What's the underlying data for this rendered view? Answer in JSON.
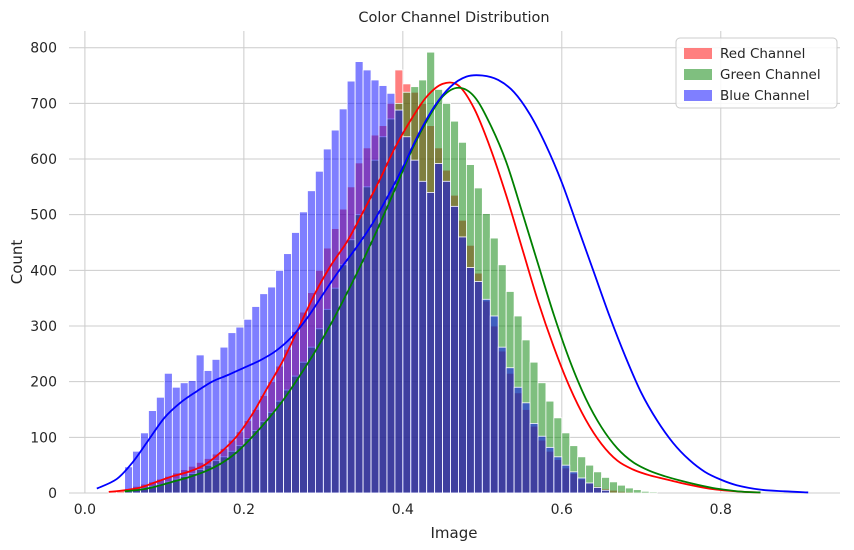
{
  "chart_data": {
    "type": "bar",
    "title": "Color Channel Distribution",
    "xlabel": "Image",
    "ylabel": "Count",
    "xlim": [
      -0.02,
      0.95
    ],
    "ylim": [
      0,
      830
    ],
    "xticks": [
      0.0,
      0.2,
      0.4,
      0.6,
      0.8
    ],
    "xtick_labels": [
      "0.0",
      "0.2",
      "0.4",
      "0.6",
      "0.8"
    ],
    "yticks": [
      0,
      100,
      200,
      300,
      400,
      500,
      600,
      700,
      800
    ],
    "ytick_labels": [
      "0",
      "100",
      "200",
      "300",
      "400",
      "500",
      "600",
      "700",
      "800"
    ],
    "grid": true,
    "legend_position": "top-right",
    "histograms": [
      {
        "name": "Red Channel",
        "color": "#ff0000",
        "bin_start": 0.03,
        "bin_width": 0.01,
        "counts": [
          3,
          5,
          8,
          12,
          16,
          20,
          25,
          30,
          36,
          42,
          48,
          55,
          62,
          70,
          80,
          95,
          110,
          130,
          150,
          175,
          200,
          228,
          258,
          290,
          325,
          360,
          400,
          440,
          475,
          510,
          550,
          593,
          620,
          643,
          660,
          700,
          760,
          735,
          720,
          700,
          660,
          620,
          580,
          535,
          490,
          445,
          395,
          345,
          300,
          255,
          215,
          180,
          150,
          120,
          95,
          75,
          60,
          45,
          35,
          25,
          18,
          12,
          8,
          5,
          3,
          2
        ]
      },
      {
        "name": "Green Channel",
        "color": "#008000",
        "bin_start": 0.05,
        "bin_width": 0.01,
        "counts": [
          3,
          5,
          8,
          12,
          15,
          20,
          25,
          30,
          35,
          42,
          50,
          58,
          65,
          75,
          85,
          98,
          112,
          128,
          145,
          165,
          185,
          210,
          235,
          262,
          295,
          330,
          368,
          410,
          455,
          500,
          550,
          598,
          640,
          672,
          700,
          720,
          730,
          742,
          792,
          725,
          700,
          668,
          630,
          590,
          548,
          502,
          458,
          410,
          362,
          318,
          275,
          235,
          198,
          165,
          135,
          108,
          85,
          65,
          50,
          38,
          28,
          20,
          14,
          9,
          6,
          3,
          2
        ]
      },
      {
        "name": "Blue Channel",
        "color": "#0000ff",
        "bin_start": 0.05,
        "bin_width": 0.01,
        "counts": [
          47,
          75,
          108,
          148,
          172,
          215,
          190,
          198,
          202,
          248,
          220,
          240,
          262,
          288,
          298,
          312,
          335,
          358,
          370,
          400,
          430,
          468,
          505,
          543,
          578,
          618,
          652,
          690,
          740,
          775,
          760,
          742,
          732,
          718,
          688,
          640,
          598,
          560,
          540,
          592,
          560,
          515,
          460,
          405,
          380,
          348,
          318,
          262,
          225,
          190,
          162,
          125,
          102,
          82,
          65,
          50,
          38,
          27,
          18,
          10,
          5
        ]
      }
    ],
    "kde": [
      {
        "name": "Red Channel",
        "color": "#ff0000",
        "x": [
          0.03,
          0.05,
          0.07,
          0.09,
          0.11,
          0.13,
          0.15,
          0.17,
          0.19,
          0.21,
          0.23,
          0.25,
          0.27,
          0.29,
          0.31,
          0.33,
          0.35,
          0.37,
          0.39,
          0.41,
          0.43,
          0.45,
          0.47,
          0.49,
          0.51,
          0.53,
          0.55,
          0.57,
          0.59,
          0.61,
          0.63,
          0.65,
          0.67,
          0.69,
          0.71,
          0.73,
          0.75,
          0.77,
          0.79,
          0.81,
          0.83,
          0.85
        ],
        "y": [
          2,
          5,
          10,
          20,
          30,
          38,
          50,
          72,
          100,
          140,
          190,
          240,
          300,
          360,
          410,
          452,
          505,
          560,
          620,
          670,
          712,
          735,
          732,
          690,
          620,
          535,
          440,
          345,
          262,
          190,
          132,
          88,
          58,
          42,
          32,
          25,
          18,
          12,
          7,
          4,
          2,
          1
        ]
      },
      {
        "name": "Green Channel",
        "color": "#008000",
        "x": [
          0.05,
          0.07,
          0.09,
          0.11,
          0.13,
          0.15,
          0.17,
          0.19,
          0.21,
          0.23,
          0.25,
          0.27,
          0.29,
          0.31,
          0.33,
          0.35,
          0.37,
          0.39,
          0.41,
          0.43,
          0.45,
          0.47,
          0.49,
          0.51,
          0.53,
          0.55,
          0.57,
          0.59,
          0.61,
          0.63,
          0.65,
          0.67,
          0.69,
          0.71,
          0.73,
          0.75,
          0.77,
          0.79,
          0.81,
          0.83,
          0.85
        ],
        "y": [
          3,
          6,
          12,
          20,
          28,
          38,
          52,
          72,
          100,
          132,
          168,
          210,
          255,
          305,
          360,
          418,
          480,
          545,
          612,
          668,
          712,
          728,
          712,
          662,
          595,
          505,
          412,
          320,
          238,
          170,
          118,
          80,
          55,
          40,
          30,
          22,
          15,
          9,
          5,
          2,
          1
        ]
      },
      {
        "name": "Blue Channel",
        "color": "#0000ff",
        "x": [
          0.015,
          0.04,
          0.06,
          0.08,
          0.1,
          0.12,
          0.14,
          0.16,
          0.18,
          0.2,
          0.22,
          0.24,
          0.26,
          0.28,
          0.3,
          0.32,
          0.34,
          0.36,
          0.38,
          0.4,
          0.42,
          0.44,
          0.46,
          0.48,
          0.5,
          0.52,
          0.54,
          0.56,
          0.58,
          0.6,
          0.62,
          0.64,
          0.66,
          0.68,
          0.7,
          0.72,
          0.74,
          0.76,
          0.78,
          0.8,
          0.82,
          0.85,
          0.88,
          0.91
        ],
        "y": [
          8,
          25,
          55,
          95,
          135,
          162,
          182,
          200,
          212,
          225,
          238,
          255,
          280,
          315,
          358,
          400,
          438,
          480,
          530,
          585,
          645,
          695,
          730,
          748,
          750,
          742,
          720,
          680,
          625,
          558,
          478,
          398,
          318,
          245,
          180,
          130,
          90,
          60,
          38,
          24,
          14,
          6,
          3,
          1
        ]
      }
    ]
  }
}
